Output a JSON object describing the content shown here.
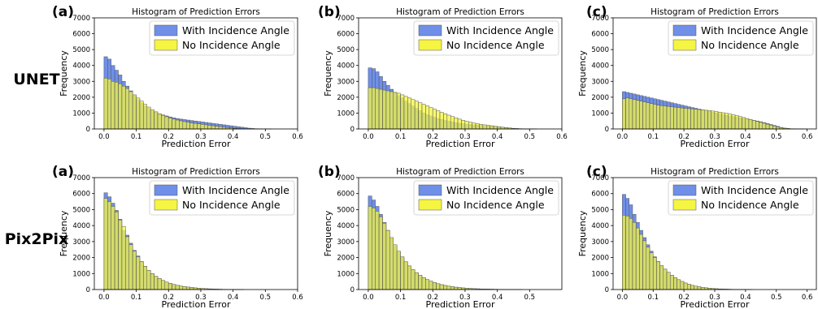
{
  "row_labels": [
    "UNET",
    "Pix2Pix"
  ],
  "series_colors": {
    "With Incidence Angle": "#6f8fe8",
    "No Incidence Angle": "#f5f542",
    "overlap": "#bcc93a",
    "edge": "#555555"
  },
  "chart_data": [
    {
      "type": "bar",
      "panel_label": "(a)",
      "row": "UNET",
      "title": "Histogram of Prediction Errors",
      "xlabel": "Prediction Error",
      "ylabel": "Frequency",
      "xlim": [
        -0.03,
        0.6
      ],
      "ylim": [
        0,
        7000
      ],
      "xticks": [
        0.0,
        0.1,
        0.2,
        0.3,
        0.4,
        0.5,
        0.6
      ],
      "yticks": [
        0,
        1000,
        2000,
        3000,
        4000,
        5000,
        6000,
        7000
      ],
      "bin_start": 0.0,
      "bin_width": 0.0111,
      "legend_position": "top-right",
      "series": [
        {
          "name": "With Incidence Angle",
          "values": [
            4550,
            4400,
            4000,
            3700,
            3400,
            3000,
            2700,
            2400,
            2100,
            1850,
            1650,
            1450,
            1300,
            1150,
            1050,
            950,
            880,
            820,
            760,
            700,
            660,
            620,
            590,
            560,
            530,
            500,
            470,
            440,
            410,
            380,
            350,
            320,
            290,
            260,
            230,
            200,
            170,
            140,
            110,
            80,
            50,
            30,
            15,
            8,
            4,
            2,
            1,
            0,
            0,
            0
          ]
        },
        {
          "name": "No Incidence Angle",
          "values": [
            3200,
            3150,
            3000,
            2950,
            2850,
            2700,
            2550,
            2350,
            2150,
            1950,
            1750,
            1550,
            1380,
            1220,
            1080,
            960,
            860,
            770,
            690,
            620,
            560,
            510,
            460,
            420,
            380,
            350,
            320,
            290,
            260,
            230,
            200,
            170,
            140,
            110,
            80,
            60,
            40,
            25,
            15,
            10,
            6,
            4,
            2,
            1,
            0,
            0,
            0,
            0,
            0,
            0
          ]
        }
      ]
    },
    {
      "type": "bar",
      "panel_label": "(b)",
      "row": "UNET",
      "title": "Histogram of Prediction Errors",
      "xlabel": "Prediction Error",
      "ylabel": "Frequency",
      "xlim": [
        -0.03,
        0.6
      ],
      "ylim": [
        0,
        7000
      ],
      "xticks": [
        0.0,
        0.1,
        0.2,
        0.3,
        0.4,
        0.5,
        0.6
      ],
      "yticks": [
        0,
        1000,
        2000,
        3000,
        4000,
        5000,
        6000,
        7000
      ],
      "bin_start": 0.0,
      "bin_width": 0.0111,
      "legend_position": "top-right",
      "series": [
        {
          "name": "With Incidence Angle",
          "values": [
            3850,
            3800,
            3600,
            3300,
            3000,
            2750,
            2500,
            2300,
            2100,
            1950,
            1750,
            1600,
            1450,
            1300,
            1150,
            1000,
            900,
            820,
            740,
            660,
            600,
            540,
            490,
            440,
            400,
            360,
            330,
            300,
            280,
            260,
            240,
            220,
            200,
            180,
            160,
            140,
            120,
            100,
            80,
            60,
            40,
            25,
            15,
            8,
            4,
            2,
            1,
            0,
            0,
            0
          ]
        },
        {
          "name": "No Incidence Angle",
          "values": [
            2600,
            2600,
            2550,
            2500,
            2450,
            2400,
            2350,
            2300,
            2250,
            2150,
            2050,
            1950,
            1850,
            1750,
            1650,
            1550,
            1450,
            1350,
            1250,
            1150,
            1050,
            960,
            870,
            780,
            700,
            620,
            550,
            480,
            420,
            370,
            330,
            290,
            260,
            230,
            200,
            170,
            140,
            110,
            80,
            60,
            40,
            25,
            15,
            8,
            4,
            2,
            1,
            0,
            0,
            0
          ]
        }
      ]
    },
    {
      "type": "bar",
      "panel_label": "(c)",
      "row": "UNET",
      "title": "Histogram of Prediction Errors",
      "xlabel": "Prediction Error",
      "ylabel": "Frequency",
      "xlim": [
        -0.03,
        0.63
      ],
      "ylim": [
        0,
        7000
      ],
      "xticks": [
        0.0,
        0.1,
        0.2,
        0.3,
        0.4,
        0.5,
        0.6
      ],
      "yticks": [
        0,
        1000,
        2000,
        3000,
        4000,
        5000,
        6000,
        7000
      ],
      "bin_start": 0.0,
      "bin_width": 0.0111,
      "legend_position": "top-right",
      "series": [
        {
          "name": "With Incidence Angle",
          "values": [
            2350,
            2300,
            2250,
            2200,
            2150,
            2100,
            2050,
            2000,
            1950,
            1900,
            1850,
            1800,
            1750,
            1700,
            1650,
            1600,
            1550,
            1500,
            1450,
            1400,
            1350,
            1300,
            1250,
            1200,
            1150,
            1100,
            1050,
            1000,
            950,
            900,
            860,
            820,
            780,
            740,
            700,
            660,
            620,
            580,
            540,
            500,
            450,
            400,
            340,
            280,
            220,
            160,
            100,
            50,
            25,
            10,
            5,
            2,
            1,
            0,
            0,
            0
          ]
        },
        {
          "name": "No Incidence Angle",
          "values": [
            1900,
            1950,
            1900,
            1850,
            1800,
            1750,
            1700,
            1650,
            1600,
            1550,
            1500,
            1470,
            1450,
            1420,
            1400,
            1370,
            1350,
            1320,
            1300,
            1280,
            1260,
            1240,
            1220,
            1200,
            1180,
            1160,
            1130,
            1100,
            1060,
            1020,
            980,
            940,
            890,
            840,
            780,
            720,
            660,
            600,
            540,
            480,
            420,
            360,
            300,
            240,
            180,
            120,
            80,
            50,
            30,
            15,
            8,
            4,
            2,
            1,
            0,
            0
          ]
        }
      ]
    },
    {
      "type": "bar",
      "panel_label": "(a)",
      "row": "Pix2Pix",
      "title": "Histogram of Prediction Errors",
      "xlabel": "Prediction Error",
      "ylabel": "Frequency",
      "xlim": [
        -0.03,
        0.6
      ],
      "ylim": [
        0,
        7000
      ],
      "xticks": [
        0.0,
        0.1,
        0.2,
        0.3,
        0.4,
        0.5,
        0.6
      ],
      "yticks": [
        0,
        1000,
        2000,
        3000,
        4000,
        5000,
        6000,
        7000
      ],
      "bin_start": 0.0,
      "bin_width": 0.0111,
      "legend_position": "top-right",
      "series": [
        {
          "name": "With Incidence Angle",
          "values": [
            6050,
            5800,
            5400,
            4950,
            4400,
            3700,
            3400,
            2900,
            2450,
            2100,
            1750,
            1450,
            1200,
            1000,
            820,
            680,
            560,
            460,
            380,
            310,
            260,
            215,
            180,
            150,
            125,
            100,
            80,
            65,
            52,
            42,
            33,
            25,
            18,
            12,
            8,
            5,
            3,
            2,
            1,
            0,
            0,
            0,
            0,
            0,
            0,
            0,
            0,
            0,
            0,
            0
          ]
        },
        {
          "name": "No Incidence Angle",
          "values": [
            5700,
            5500,
            5200,
            4850,
            4350,
            3950,
            3300,
            2800,
            2400,
            2050,
            1750,
            1450,
            1200,
            1000,
            830,
            690,
            570,
            470,
            390,
            320,
            265,
            220,
            185,
            155,
            130,
            105,
            85,
            68,
            55,
            44,
            35,
            27,
            20,
            14,
            9,
            6,
            4,
            2,
            1,
            0,
            0,
            0,
            0,
            0,
            0,
            0,
            0,
            0,
            0,
            0
          ]
        }
      ]
    },
    {
      "type": "bar",
      "panel_label": "(b)",
      "row": "Pix2Pix",
      "title": "Histogram of Prediction Errors",
      "xlabel": "Prediction Error",
      "ylabel": "Frequency",
      "xlim": [
        -0.03,
        0.6
      ],
      "ylim": [
        0,
        7000
      ],
      "xticks": [
        0.0,
        0.1,
        0.2,
        0.3,
        0.4,
        0.5
      ],
      "yticks": [
        0,
        1000,
        2000,
        3000,
        4000,
        5000,
        6000,
        7000
      ],
      "bin_start": 0.0,
      "bin_width": 0.0111,
      "legend_position": "top-right",
      "series": [
        {
          "name": "With Incidence Angle",
          "values": [
            5850,
            5600,
            5200,
            4700,
            4200,
            3700,
            3200,
            2750,
            2350,
            2000,
            1700,
            1450,
            1230,
            1040,
            880,
            740,
            620,
            520,
            430,
            360,
            300,
            250,
            210,
            175,
            145,
            120,
            100,
            82,
            68,
            56,
            46,
            38,
            31,
            25,
            20,
            16,
            12,
            9,
            6,
            4,
            3,
            2,
            1,
            0,
            0,
            0,
            0,
            0,
            0,
            0
          ]
        },
        {
          "name": "No Incidence Angle",
          "values": [
            5200,
            5100,
            4900,
            4550,
            4150,
            3700,
            3250,
            2800,
            2400,
            2050,
            1750,
            1480,
            1250,
            1060,
            890,
            750,
            630,
            530,
            440,
            365,
            305,
            255,
            213,
            178,
            148,
            122,
            101,
            83,
            69,
            57,
            47,
            39,
            32,
            26,
            21,
            16,
            12,
            9,
            6,
            4,
            3,
            2,
            1,
            0,
            0,
            0,
            0,
            0,
            0,
            0
          ]
        }
      ]
    },
    {
      "type": "bar",
      "panel_label": "(c)",
      "row": "Pix2Pix",
      "title": "Histogram of Prediction Errors",
      "xlabel": "Prediction Error",
      "ylabel": "Frequency",
      "xlim": [
        -0.03,
        0.63
      ],
      "ylim": [
        0,
        7000
      ],
      "xticks": [
        0.0,
        0.1,
        0.2,
        0.3,
        0.4,
        0.5,
        0.6
      ],
      "yticks": [
        0,
        1000,
        2000,
        3000,
        4000,
        5000,
        6000,
        7000
      ],
      "bin_start": 0.0,
      "bin_width": 0.0111,
      "legend_position": "top-right",
      "series": [
        {
          "name": "With Incidence Angle",
          "values": [
            5950,
            5700,
            5300,
            4700,
            4200,
            3700,
            3250,
            2800,
            2400,
            2050,
            1750,
            1480,
            1250,
            1050,
            880,
            730,
            600,
            490,
            400,
            320,
            260,
            210,
            170,
            135,
            108,
            85,
            66,
            51,
            39,
            30,
            23,
            17,
            12,
            8,
            5,
            3,
            2,
            1,
            0,
            0,
            0,
            0,
            0,
            0,
            0,
            0,
            0,
            0,
            0,
            0
          ]
        },
        {
          "name": "No Incidence Angle",
          "values": [
            4650,
            4600,
            4450,
            4200,
            3850,
            3450,
            3050,
            2650,
            2300,
            2000,
            1750,
            1500,
            1280,
            1080,
            900,
            750,
            620,
            510,
            410,
            330,
            265,
            215,
            172,
            137,
            109,
            86,
            67,
            52,
            40,
            31,
            24,
            18,
            13,
            9,
            6,
            4,
            2,
            1,
            0,
            0,
            0,
            0,
            0,
            0,
            0,
            0,
            0,
            0,
            0,
            0
          ]
        }
      ]
    }
  ]
}
